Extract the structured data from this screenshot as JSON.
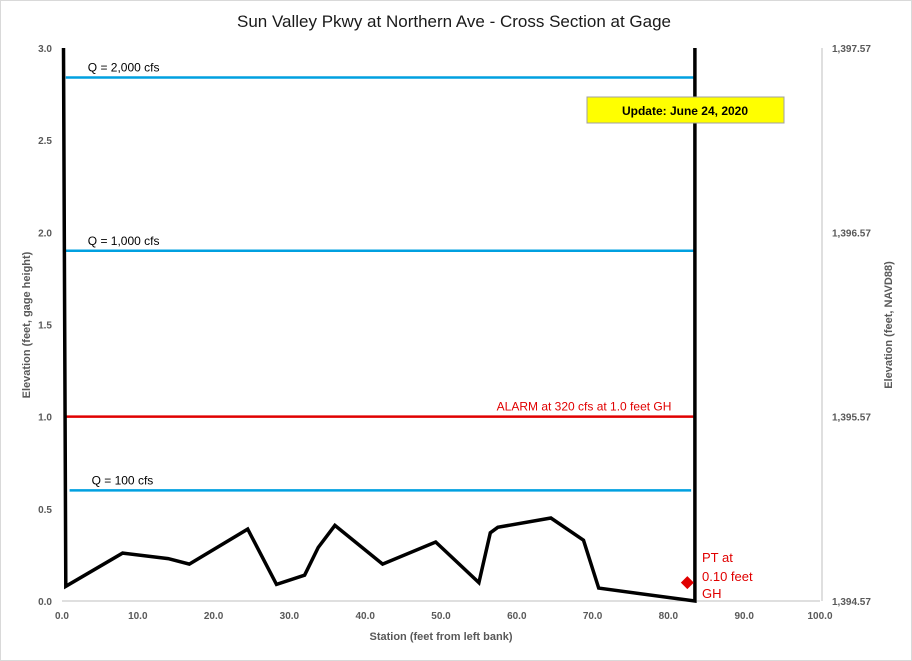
{
  "chart_data": {
    "type": "line",
    "title": "Sun Valley Pkwy at Northern Ave - Cross Section at Gage",
    "xlabel": "Station (feet from left bank)",
    "ylabel_left": "Elevation (feet, gage height)",
    "ylabel_right": "Elevation (feet, NAVD88)",
    "xlim": [
      0,
      100
    ],
    "ylim": [
      0,
      3
    ],
    "ylim_right": [
      1394.57,
      1397.57
    ],
    "x_ticks": [
      "0.0",
      "10.0",
      "20.0",
      "30.0",
      "40.0",
      "50.0",
      "60.0",
      "70.0",
      "80.0",
      "90.0",
      "100.0"
    ],
    "y_ticks_left": [
      "0.0",
      "0.5",
      "1.0",
      "1.5",
      "2.0",
      "2.5",
      "3.0"
    ],
    "y_ticks_right": [
      "1,394.57",
      "1,395.57",
      "1,396.57",
      "1,397.57"
    ],
    "grid": false,
    "series": [
      {
        "color": "#000000",
        "x": [
          0.2,
          0.5,
          8.0,
          14.0,
          16.8,
          24.5,
          28.3,
          32.0,
          33.8,
          36.0,
          42.3,
          49.3,
          55.0,
          56.5,
          57.5,
          64.5,
          68.8,
          70.8,
          83.5,
          83.5
        ],
        "y": [
          3.0,
          0.08,
          0.26,
          0.23,
          0.2,
          0.39,
          0.09,
          0.14,
          0.29,
          0.41,
          0.2,
          0.32,
          0.1,
          0.37,
          0.4,
          0.45,
          0.33,
          0.07,
          0.0,
          3.0
        ]
      }
    ],
    "reference_lines": [
      {
        "label": "Q = 2,000  cfs",
        "y": 2.84,
        "x": [
          0.5,
          83.3
        ],
        "color": "#00a0e0"
      },
      {
        "label": "Q = 1,000  cfs",
        "y": 1.9,
        "x": [
          0.5,
          83.3
        ],
        "color": "#00a0e0"
      },
      {
        "label": "ALARM at 320  cfs at 1.0 feet GH",
        "y": 1.0,
        "x": [
          0.5,
          83.3
        ],
        "color": "#e00000"
      },
      {
        "label": "Q = 100  cfs",
        "y": 0.6,
        "x": [
          1.0,
          83.0
        ],
        "color": "#00a0e0"
      }
    ],
    "pressure_transducer": {
      "label_lines": [
        "PT at",
        "0.10 feet",
        "GH"
      ],
      "x": 82.5,
      "y": 0.1,
      "color": "#e00000"
    },
    "update_badge": {
      "text": "Update: June 24, 2020",
      "fill": "#ffff00"
    }
  }
}
